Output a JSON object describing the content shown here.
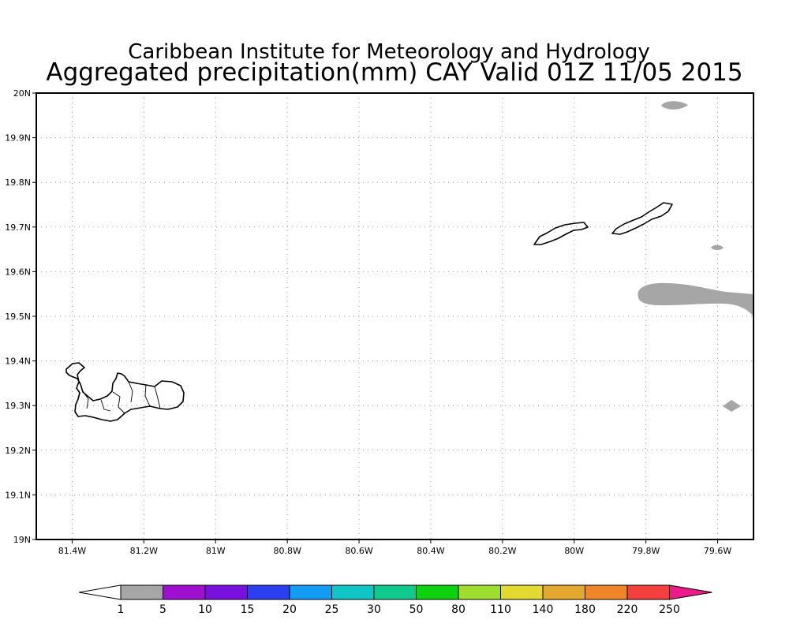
{
  "title": {
    "line1": "Caribbean Institute for Meteorology and Hydrology",
    "line2": "Aggregated precipitation(mm) CAY Valid 01Z 11/05 2015"
  },
  "map": {
    "lon_range": [
      -81.5,
      -79.5
    ],
    "lat_range": [
      19.0,
      20.0
    ],
    "lon_ticks": [
      {
        "value": -81.4,
        "label": "81.4W"
      },
      {
        "value": -81.2,
        "label": "81.2W"
      },
      {
        "value": -81.0,
        "label": "81W"
      },
      {
        "value": -80.8,
        "label": "80.8W"
      },
      {
        "value": -80.6,
        "label": "80.6W"
      },
      {
        "value": -80.4,
        "label": "80.4W"
      },
      {
        "value": -80.2,
        "label": "80.2W"
      },
      {
        "value": -80.0,
        "label": "80W"
      },
      {
        "value": -79.8,
        "label": "79.8W"
      },
      {
        "value": -79.6,
        "label": "79.6W"
      }
    ],
    "lat_ticks": [
      {
        "value": 20.0,
        "label": "20N"
      },
      {
        "value": 19.9,
        "label": "19.9N"
      },
      {
        "value": 19.8,
        "label": "19.8N"
      },
      {
        "value": 19.7,
        "label": "19.7N"
      },
      {
        "value": 19.6,
        "label": "19.6N"
      },
      {
        "value": 19.5,
        "label": "19.5N"
      },
      {
        "value": 19.4,
        "label": "19.4N"
      },
      {
        "value": 19.3,
        "label": "19.3N"
      },
      {
        "value": 19.2,
        "label": "19.2N"
      },
      {
        "value": 19.1,
        "label": "19.1N"
      },
      {
        "value": 19.0,
        "label": "19N"
      }
    ],
    "grid": "dotted",
    "land_outline_color": "#000000"
  },
  "colorbar": {
    "labels": [
      "1",
      "5",
      "10",
      "15",
      "20",
      "25",
      "30",
      "50",
      "80",
      "110",
      "140",
      "180",
      "220",
      "250"
    ],
    "colors": [
      "#a6a6a6",
      "#9f0fd2",
      "#7a10e0",
      "#2b3ff0",
      "#129cf3",
      "#10c5c5",
      "#10c98c",
      "#0fd20f",
      "#9fde2f",
      "#e4d930",
      "#e2a92e",
      "#ee8628",
      "#f43f3f"
    ],
    "under_color": "#ffffff",
    "over_color": "#ec1b8c"
  },
  "precip_color": "#a6a6a6"
}
